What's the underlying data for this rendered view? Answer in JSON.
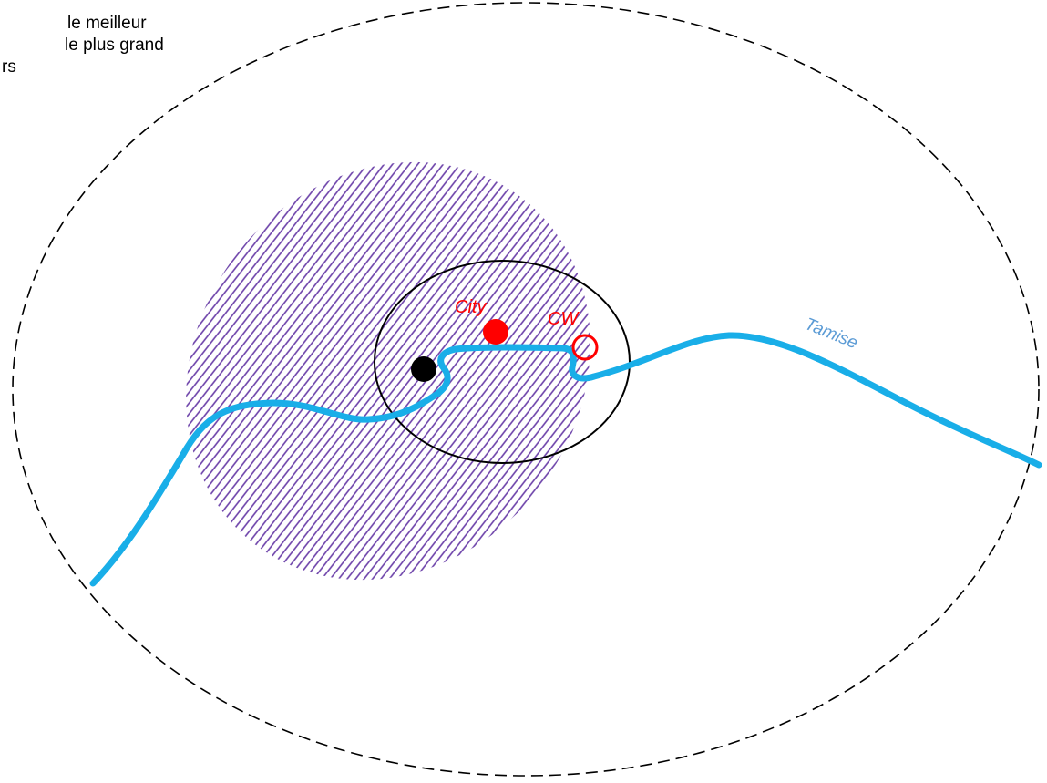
{
  "note": {
    "lines": [
      "le meilleur",
      "le plus grand",
      "rs"
    ]
  },
  "labels": {
    "city": "City",
    "cw": "CW",
    "river": "Tamise"
  },
  "colors": {
    "hatch": "#6a3fa8",
    "river": "#19aee8",
    "river_label": "#5b9bd5",
    "markers": "#ff0000",
    "outline": "#000000"
  }
}
